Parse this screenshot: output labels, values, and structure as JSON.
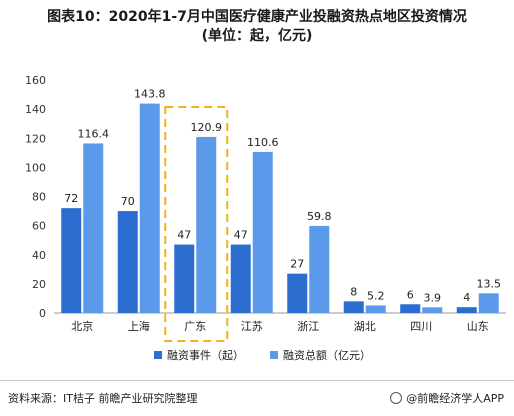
{
  "title_line1": "图表10：2020年1-7月中国医疗健康产业投融资热点地区投资情况",
  "title_line2": "(单位：起，亿元)",
  "source": "资料来源：IT桔子 前瞻产业研究院整理",
  "brand": "@前瞻经济学人APP",
  "colors": {
    "events": "#2b6ed0",
    "amount": "#5b99ea",
    "highlight": "#f0b416"
  },
  "chart_data": {
    "type": "bar",
    "categories": [
      "北京",
      "上海",
      "广东",
      "江苏",
      "浙江",
      "湖北",
      "四川",
      "山东"
    ],
    "series": [
      {
        "name": "融资事件（起）",
        "values": [
          72,
          70,
          47,
          47,
          27,
          8,
          6,
          4
        ]
      },
      {
        "name": "融资总额（亿元）",
        "values": [
          116.4,
          143.8,
          120.9,
          110.6,
          59.8,
          5.2,
          3.9,
          13.5
        ]
      }
    ],
    "series_labels": [
      [
        "72",
        "70",
        "47",
        "47",
        "27",
        "8",
        "6",
        "4"
      ],
      [
        "116.4",
        "143.8",
        "120.9",
        "110.6",
        "59.8",
        "5.2",
        "3.9",
        "13.5"
      ]
    ],
    "ylim": [
      0,
      160
    ],
    "yticks": [
      0,
      20,
      40,
      60,
      80,
      100,
      120,
      140,
      160
    ],
    "highlight_category": "广东",
    "legend_position": "bottom",
    "grid": false
  }
}
